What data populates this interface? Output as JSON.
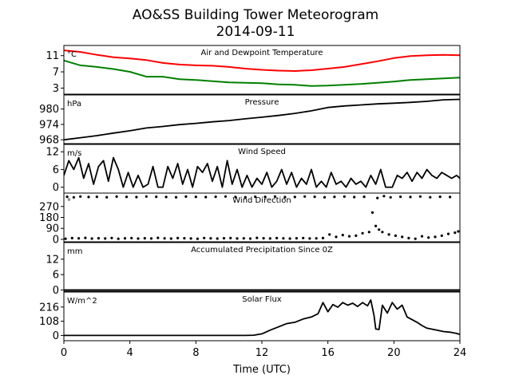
{
  "figure": {
    "title_line1": "AO&SS Building Tower Meteorogram",
    "title_line2": "2014-09-11",
    "xlabel": "Time (UTC)",
    "xticks": [
      "0",
      "4",
      "8",
      "12",
      "16",
      "20",
      "24"
    ],
    "xlim": [
      0,
      24
    ]
  },
  "chart_data": [
    {
      "type": "line",
      "title": "Air and Dewpoint Temperature",
      "unit_label": "°C",
      "yticks": [
        3,
        7,
        11
      ],
      "ylim": [
        1.5,
        13.5
      ],
      "series": [
        {
          "color": "#ff0000",
          "x": [
            0,
            1,
            2,
            3,
            4,
            5,
            6,
            7,
            8,
            9,
            10,
            11,
            12,
            13,
            14,
            15,
            16,
            17,
            18,
            19,
            20,
            21,
            22,
            23,
            24
          ],
          "values": [
            12.3,
            11.9,
            11.2,
            10.6,
            10.3,
            9.9,
            9.2,
            8.8,
            8.6,
            8.5,
            8.2,
            7.8,
            7.5,
            7.3,
            7.2,
            7.4,
            7.8,
            8.2,
            8.9,
            9.6,
            10.4,
            10.9,
            11.1,
            11.2,
            11.1
          ]
        },
        {
          "color": "#008000",
          "x": [
            0,
            1,
            2,
            3,
            4,
            5,
            6,
            7,
            8,
            9,
            10,
            11,
            12,
            13,
            14,
            15,
            16,
            17,
            18,
            19,
            20,
            21,
            22,
            23,
            24
          ],
          "values": [
            9.8,
            8.6,
            8.2,
            7.7,
            7.0,
            5.8,
            5.8,
            5.2,
            5.0,
            4.7,
            4.4,
            4.3,
            4.2,
            3.9,
            3.8,
            3.5,
            3.6,
            3.8,
            4.0,
            4.3,
            4.6,
            5.0,
            5.2,
            5.4,
            5.6
          ]
        }
      ]
    },
    {
      "type": "line",
      "title": "Pressure",
      "unit_label": "hPa",
      "yticks": [
        968,
        974,
        980
      ],
      "ylim": [
        966.5,
        985.5
      ],
      "series": [
        {
          "color": "#000000",
          "x": [
            0,
            1,
            2,
            3,
            4,
            5,
            6,
            7,
            8,
            9,
            10,
            11,
            12,
            13,
            14,
            15,
            16,
            17,
            18,
            19,
            20,
            21,
            22,
            23,
            24
          ],
          "values": [
            968.0,
            968.8,
            969.6,
            970.6,
            971.5,
            972.6,
            973.2,
            973.9,
            974.4,
            975.0,
            975.5,
            976.2,
            976.8,
            977.5,
            978.3,
            979.3,
            980.6,
            981.2,
            981.6,
            982.0,
            982.3,
            982.6,
            983.0,
            983.6,
            983.8
          ]
        }
      ]
    },
    {
      "type": "line",
      "title": "Wind Speed",
      "unit_label": "m/s",
      "yticks": [
        0,
        6,
        12
      ],
      "ylim": [
        -2,
        14.5
      ],
      "series": [
        {
          "color": "#000000",
          "x": [
            0,
            0.3,
            0.6,
            0.9,
            1.2,
            1.5,
            1.8,
            2.1,
            2.4,
            2.7,
            3.0,
            3.3,
            3.6,
            3.9,
            4.2,
            4.5,
            4.8,
            5.1,
            5.4,
            5.7,
            6.0,
            6.3,
            6.6,
            6.9,
            7.2,
            7.5,
            7.8,
            8.1,
            8.4,
            8.7,
            9.0,
            9.3,
            9.6,
            9.9,
            10.2,
            10.5,
            10.8,
            11.1,
            11.4,
            11.7,
            12.0,
            12.3,
            12.6,
            12.9,
            13.2,
            13.5,
            13.8,
            14.1,
            14.4,
            14.7,
            15.0,
            15.3,
            15.6,
            15.9,
            16.2,
            16.5,
            16.8,
            17.1,
            17.4,
            17.7,
            18.0,
            18.3,
            18.6,
            18.9,
            19.2,
            19.5,
            19.8,
            19.9,
            20.2,
            20.5,
            20.8,
            21.1,
            21.4,
            21.7,
            22.0,
            22.3,
            22.6,
            22.9,
            23.2,
            23.5,
            23.8,
            24.0
          ],
          "values": [
            4,
            9,
            6,
            10,
            3,
            8,
            1,
            7,
            9,
            2,
            10,
            6,
            0,
            5,
            0,
            4,
            0,
            1,
            7,
            0,
            0,
            7,
            3,
            8,
            1,
            6,
            0,
            7,
            5,
            8,
            2,
            7,
            0,
            9,
            1,
            6,
            0,
            4,
            0,
            3,
            1,
            5,
            0,
            2,
            6,
            1,
            5,
            0,
            3,
            1,
            6,
            0,
            2,
            0,
            5,
            1,
            2,
            0,
            3,
            1,
            2,
            0,
            4,
            1,
            6,
            0,
            0,
            0,
            4,
            3,
            5,
            2,
            5,
            3,
            6,
            4,
            3,
            5,
            4,
            3,
            4,
            3
          ]
        }
      ]
    },
    {
      "type": "scatter",
      "title": "Wind Direction",
      "unit_label": "°",
      "yticks": [
        0,
        90,
        180,
        270
      ],
      "ylim": [
        -20,
        380
      ],
      "series": [
        {
          "color": "#000000",
          "x": [
            0.1,
            0.5,
            0.9,
            1.3,
            1.7,
            2.1,
            2.5,
            2.9,
            3.3,
            3.7,
            4.1,
            4.5,
            4.9,
            5.3,
            5.7,
            6.1,
            6.5,
            6.9,
            7.3,
            7.7,
            8.1,
            8.5,
            8.9,
            9.3,
            9.7,
            10.1,
            10.5,
            10.9,
            11.3,
            11.7,
            12.1,
            12.5,
            12.9,
            13.3,
            13.7,
            14.1,
            14.5,
            14.9,
            15.3,
            15.7,
            16.1,
            16.5,
            16.9,
            17.3,
            17.7,
            18.1,
            18.5,
            18.7,
            18.9,
            19.1,
            19.3,
            19.7,
            20.1,
            20.5,
            20.9,
            21.3,
            21.7,
            22.1,
            22.5,
            22.9,
            23.3,
            23.7,
            23.9,
            0.2,
            0.6,
            1.0,
            1.5,
            2.0,
            2.6,
            3.2,
            3.8,
            4.4,
            5.0,
            5.6,
            6.2,
            6.8,
            7.4,
            8.0,
            8.6,
            9.2,
            9.8,
            10.4,
            11.0,
            11.6,
            12.2,
            12.8,
            13.4,
            14.0,
            14.6,
            15.2,
            15.8,
            16.4,
            17.0,
            17.6,
            18.2,
            19.0,
            19.4,
            19.8,
            20.4,
            21.0,
            21.6,
            22.2,
            22.8,
            23.4
          ],
          "values": [
            5,
            10,
            8,
            12,
            6,
            9,
            7,
            11,
            5,
            8,
            10,
            6,
            9,
            7,
            12,
            8,
            6,
            10,
            9,
            7,
            5,
            11,
            8,
            6,
            9,
            10,
            7,
            8,
            6,
            12,
            9,
            7,
            10,
            8,
            6,
            9,
            11,
            7,
            8,
            10,
            40,
            20,
            35,
            25,
            30,
            50,
            60,
            220,
            110,
            80,
            60,
            40,
            30,
            20,
            10,
            5,
            25,
            15,
            20,
            30,
            45,
            55,
            65,
            350,
            345,
            352,
            348,
            350,
            346,
            351,
            349,
            347,
            352,
            350,
            348,
            346,
            351,
            349,
            347,
            350,
            352,
            348,
            346,
            350,
            349,
            351,
            347,
            348,
            352,
            350,
            346,
            349,
            351,
            347,
            350,
            340,
            355,
            345,
            350,
            348,
            352,
            346,
            350,
            348
          ]
        }
      ]
    },
    {
      "type": "line",
      "title": "Accumulated Precipitation Since 0Z",
      "unit_label": "mm",
      "yticks": [
        0,
        6,
        12
      ],
      "ylim": [
        -0.5,
        18.5
      ],
      "series": [
        {
          "color": "#000000",
          "x": [
            0,
            24
          ],
          "values": [
            0,
            0
          ]
        }
      ]
    },
    {
      "type": "line",
      "title": "Solar Flux",
      "unit_label": "W/m^2",
      "yticks": [
        0,
        108,
        216
      ],
      "ylim": [
        -40,
        330
      ],
      "series": [
        {
          "color": "#000000",
          "x": [
            0,
            2,
            4,
            6,
            8,
            10,
            11,
            11.5,
            12,
            12.5,
            13,
            13.5,
            14,
            14.5,
            15,
            15.4,
            15.7,
            16,
            16.3,
            16.6,
            16.9,
            17.2,
            17.5,
            17.8,
            18.1,
            18.4,
            18.6,
            18.8,
            18.9,
            19.1,
            19.3,
            19.6,
            19.9,
            20.2,
            20.5,
            20.8,
            21.1,
            21.4,
            21.7,
            22.0,
            22.3,
            22.6,
            23.0,
            23.4,
            23.8,
            24.0
          ],
          "values": [
            0,
            0,
            0,
            0,
            0,
            0,
            0,
            2,
            12,
            40,
            65,
            90,
            100,
            125,
            140,
            165,
            250,
            180,
            235,
            215,
            250,
            230,
            245,
            220,
            250,
            225,
            270,
            150,
            50,
            45,
            230,
            170,
            250,
            200,
            230,
            140,
            120,
            100,
            75,
            55,
            48,
            40,
            30,
            25,
            15,
            8
          ]
        }
      ]
    }
  ]
}
